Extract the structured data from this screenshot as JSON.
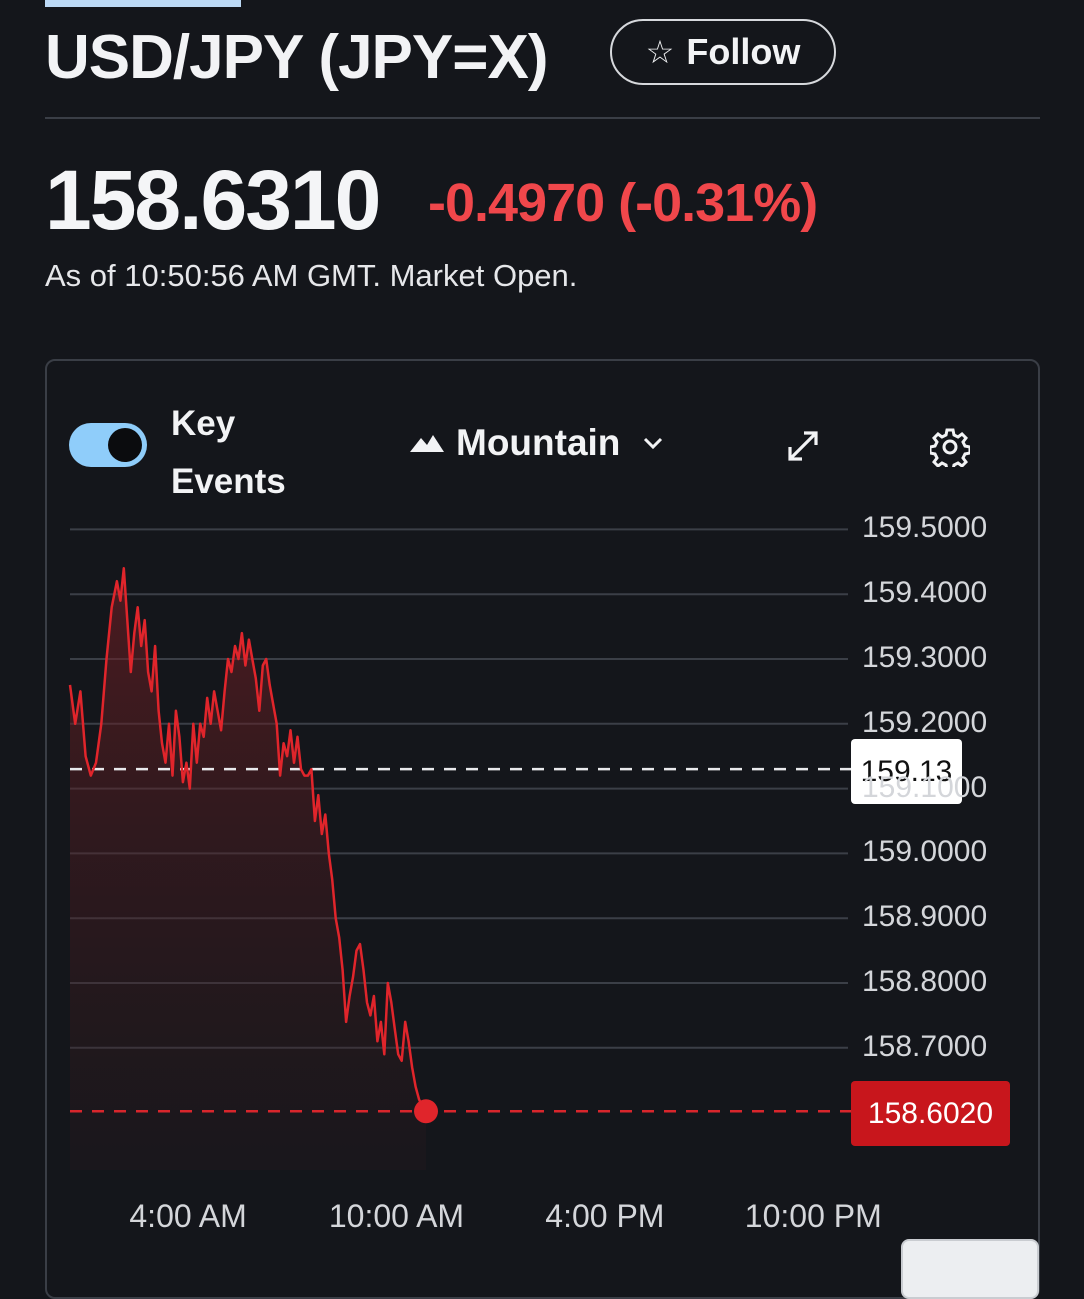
{
  "header": {
    "title": "USD/JPY (JPY=X)",
    "follow_label": "Follow"
  },
  "quote": {
    "price": "158.6310",
    "change": "-0.4970 (-0.31%)",
    "as_of": "As of 10:50:56 AM GMT. Market Open."
  },
  "toolbar": {
    "key_events_label": "Key Events",
    "key_events_enabled": true,
    "chart_type_label": "Mountain"
  },
  "colors": {
    "background": "#14161b",
    "line": "#e0252b",
    "negative": "#f0474b",
    "toggle_on": "#8fcdfa"
  },
  "chart_data": {
    "type": "area",
    "y_ticks": [
      "159.5000",
      "159.4000",
      "159.3000",
      "159.2000",
      "159.1000",
      "159.0000",
      "158.9000",
      "158.8000",
      "158.7000"
    ],
    "x_ticks": [
      "4:00 AM",
      "10:00 AM",
      "4:00 PM",
      "10:00 PM"
    ],
    "ylim": [
      158.55,
      159.55
    ],
    "reference_label": "159.13",
    "reference_value": 159.13,
    "last_label": "158.6020",
    "last_value": 158.602,
    "grid": true,
    "x_range_hours": [
      0.6,
      23.0
    ],
    "series": [
      {
        "x": [
          0.6,
          0.75,
          0.9,
          1.05,
          1.2,
          1.35,
          1.5,
          1.65,
          1.8,
          1.95,
          2.05,
          2.15,
          2.25,
          2.35,
          2.45,
          2.55,
          2.65,
          2.75,
          2.85,
          2.95,
          3.05,
          3.15,
          3.25,
          3.35,
          3.45,
          3.55,
          3.65,
          3.75,
          3.85,
          3.95,
          4.05,
          4.15,
          4.25,
          4.35,
          4.45,
          4.55,
          4.65,
          4.75,
          4.85,
          4.95,
          5.05,
          5.15,
          5.25,
          5.35,
          5.45,
          5.55,
          5.65,
          5.75,
          5.85,
          5.95,
          6.05,
          6.15,
          6.25,
          6.35,
          6.45,
          6.55,
          6.65,
          6.75,
          6.85,
          6.95,
          7.05,
          7.15,
          7.25,
          7.35,
          7.45,
          7.55,
          7.65,
          7.75,
          7.85,
          7.95,
          8.05,
          8.15,
          8.25,
          8.35,
          8.45,
          8.55,
          8.65,
          8.75,
          8.85,
          8.95,
          9.05,
          9.15,
          9.25,
          9.35,
          9.45,
          9.55,
          9.65,
          9.75,
          9.85,
          9.95,
          10.05,
          10.15,
          10.25,
          10.35,
          10.45,
          10.55,
          10.65,
          10.75,
          10.85
        ],
        "y": [
          159.26,
          159.2,
          159.25,
          159.15,
          159.12,
          159.14,
          159.2,
          159.3,
          159.38,
          159.42,
          159.39,
          159.44,
          159.36,
          159.28,
          159.34,
          159.38,
          159.32,
          159.36,
          159.28,
          159.25,
          159.32,
          159.22,
          159.17,
          159.14,
          159.2,
          159.12,
          159.22,
          159.18,
          159.11,
          159.14,
          159.1,
          159.2,
          159.14,
          159.2,
          159.18,
          159.24,
          159.2,
          159.25,
          159.22,
          159.19,
          159.25,
          159.3,
          159.28,
          159.32,
          159.3,
          159.34,
          159.29,
          159.33,
          159.3,
          159.27,
          159.22,
          159.29,
          159.3,
          159.26,
          159.23,
          159.2,
          159.12,
          159.17,
          159.15,
          159.19,
          159.14,
          159.18,
          159.13,
          159.12,
          159.12,
          159.13,
          159.05,
          159.09,
          159.03,
          159.06,
          159.0,
          158.96,
          158.9,
          158.87,
          158.82,
          158.74,
          158.78,
          158.81,
          158.85,
          158.86,
          158.82,
          158.77,
          158.75,
          158.78,
          158.71,
          158.74,
          158.69,
          158.8,
          158.77,
          158.73,
          158.69,
          158.68,
          158.74,
          158.71,
          158.67,
          158.64,
          158.62,
          158.61,
          158.602
        ],
        "fill": "#e0252b"
      }
    ]
  },
  "labels_px_note": ""
}
